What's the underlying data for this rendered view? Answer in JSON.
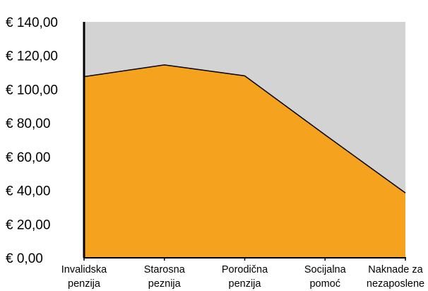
{
  "chart_data": {
    "type": "area",
    "categories": [
      [
        "Invalidska",
        "penzija"
      ],
      [
        "Starosna",
        "peznija"
      ],
      [
        "Porodična",
        "penzija"
      ],
      [
        "Socijalna",
        "pomoć"
      ],
      [
        "Naknade za",
        "nezaposlene"
      ]
    ],
    "series": [
      {
        "values": [
          107.5,
          114.5,
          108.0,
          73.0,
          38.5
        ]
      }
    ],
    "y_ticks": [
      "€ 0,00",
      "€ 20,00",
      "€ 40,00",
      "€ 60,00",
      "€ 80,00",
      "€ 100,00",
      "€ 120,00",
      "€ 140,00"
    ],
    "ylim": [
      0,
      140
    ],
    "grid": false,
    "colors": {
      "area_fill": "#F5A21E",
      "plot_background": "#D3D3D3",
      "line": "#000000"
    }
  }
}
